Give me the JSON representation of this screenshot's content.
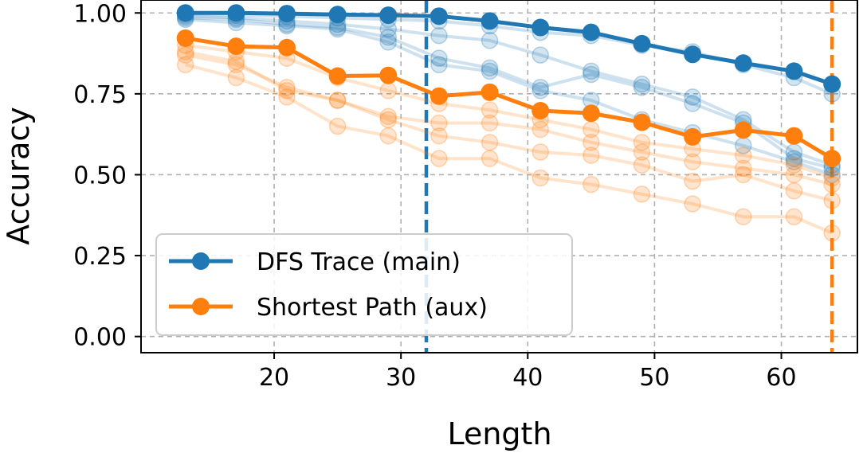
{
  "chart_data": {
    "type": "line",
    "xlabel": "Length",
    "ylabel": "Accuracy",
    "xlim": [
      9.5,
      66
    ],
    "ylim": [
      -0.05,
      1.04
    ],
    "grid": true,
    "legend_position": "lower-left",
    "x": [
      13,
      17,
      21,
      25,
      29,
      33,
      37,
      41,
      45,
      49,
      53,
      57,
      61,
      64
    ],
    "xticks": [
      20,
      30,
      40,
      50,
      60
    ],
    "xtick_labels": [
      "20",
      "30",
      "40",
      "50",
      "60"
    ],
    "yticks": [
      0.0,
      0.25,
      0.5,
      0.75,
      1.0
    ],
    "ytick_labels": [
      "0.00",
      "0.25",
      "0.50",
      "0.75",
      "1.00"
    ],
    "vlines": [
      {
        "x": 32,
        "color": "#1f77b4",
        "style": "dashed"
      },
      {
        "x": 64,
        "color": "#ff7f0e",
        "style": "dashed"
      }
    ],
    "series": [
      {
        "name": "DFS Trace (main)",
        "color": "#1f77b4",
        "values": [
          1.0,
          1.0,
          0.998,
          0.995,
          0.993,
          0.99,
          0.975,
          0.955,
          0.94,
          0.905,
          0.872,
          0.845,
          0.82,
          0.78
        ]
      },
      {
        "name": "Shortest Path (aux)",
        "color": "#ff7f0e",
        "values": [
          0.922,
          0.897,
          0.893,
          0.805,
          0.807,
          0.743,
          0.755,
          0.698,
          0.69,
          0.662,
          0.617,
          0.638,
          0.62,
          0.55
        ]
      }
    ],
    "background_runs": [
      {
        "color": "#1f77b4",
        "values": [
          0.995,
          0.993,
          0.99,
          0.985,
          0.98,
          0.975,
          0.96,
          0.94,
          0.93,
          0.9,
          0.88,
          0.84,
          0.8,
          0.75
        ]
      },
      {
        "color": "#1f77b4",
        "values": [
          0.99,
          0.985,
          0.975,
          0.965,
          0.95,
          0.93,
          0.915,
          0.87,
          0.82,
          0.78,
          0.74,
          0.67,
          0.57,
          0.53
        ]
      },
      {
        "color": "#1f77b4",
        "values": [
          0.985,
          0.98,
          0.965,
          0.955,
          0.925,
          0.86,
          0.83,
          0.77,
          0.81,
          0.77,
          0.72,
          0.66,
          0.55,
          0.52
        ]
      },
      {
        "color": "#1f77b4",
        "values": [
          0.98,
          0.97,
          0.96,
          0.95,
          0.91,
          0.84,
          0.82,
          0.76,
          0.73,
          0.67,
          0.63,
          0.59,
          0.54,
          0.5
        ]
      },
      {
        "color": "#ff7f0e",
        "values": [
          0.9,
          0.88,
          0.86,
          0.8,
          0.76,
          0.72,
          0.7,
          0.67,
          0.64,
          0.6,
          0.58,
          0.56,
          0.53,
          0.49
        ]
      },
      {
        "color": "#ff7f0e",
        "values": [
          0.88,
          0.85,
          0.76,
          0.73,
          0.68,
          0.66,
          0.66,
          0.64,
          0.6,
          0.57,
          0.54,
          0.52,
          0.5,
          0.47
        ]
      },
      {
        "color": "#ff7f0e",
        "values": [
          0.87,
          0.84,
          0.77,
          0.73,
          0.67,
          0.62,
          0.6,
          0.57,
          0.56,
          0.53,
          0.48,
          0.5,
          0.45,
          0.42
        ]
      },
      {
        "color": "#ff7f0e",
        "values": [
          0.84,
          0.8,
          0.74,
          0.65,
          0.62,
          0.55,
          0.55,
          0.49,
          0.47,
          0.44,
          0.41,
          0.37,
          0.37,
          0.32
        ]
      }
    ]
  }
}
